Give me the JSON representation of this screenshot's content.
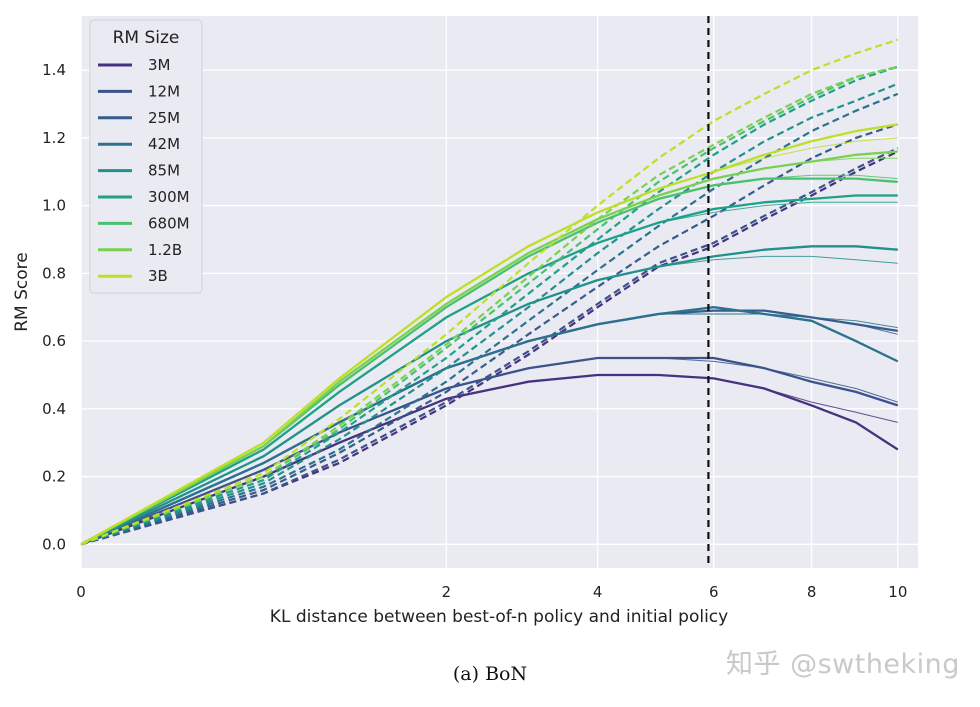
{
  "caption": "(a) BoN",
  "watermark": "知乎 @swtheking",
  "chart_data": {
    "type": "line",
    "xlabel": "KL distance between best-of-n policy and initial policy",
    "ylabel": "RM Score",
    "x_scale": "sqrt",
    "xlim": [
      0,
      10.5
    ],
    "ylim": [
      -0.07,
      1.56
    ],
    "x_ticks": [
      0,
      2,
      4,
      6,
      8,
      10
    ],
    "y_ticks": [
      0.0,
      0.2,
      0.4,
      0.6,
      0.8,
      1.0,
      1.2,
      1.4
    ],
    "vline_x": 5.9,
    "legend": {
      "title": "RM Size",
      "placement": "top-left"
    },
    "background_color": "#eaeaf2",
    "grid": true,
    "series": [
      {
        "name": "3M",
        "color": "#46327e",
        "x": [
          0,
          0.5,
          1,
          2,
          3,
          4,
          5,
          6,
          7,
          8,
          9,
          10
        ],
        "fit": [
          0,
          0.2,
          0.3,
          0.43,
          0.48,
          0.5,
          0.5,
          0.49,
          0.46,
          0.42,
          0.39,
          0.36
        ],
        "actual": [
          0,
          0.2,
          0.3,
          0.43,
          0.48,
          0.5,
          0.5,
          0.49,
          0.46,
          0.41,
          0.36,
          0.28
        ],
        "gold": [
          0,
          0.15,
          0.24,
          0.41,
          0.56,
          0.7,
          0.82,
          0.88,
          0.96,
          1.03,
          1.1,
          1.16
        ]
      },
      {
        "name": "12M",
        "color": "#3b528b",
        "x": [
          0,
          0.5,
          1,
          2,
          3,
          4,
          5,
          6,
          7,
          8,
          9,
          10
        ],
        "fit": [
          0,
          0.22,
          0.33,
          0.46,
          0.52,
          0.55,
          0.55,
          0.54,
          0.52,
          0.49,
          0.46,
          0.42
        ],
        "actual": [
          0,
          0.22,
          0.33,
          0.46,
          0.52,
          0.55,
          0.55,
          0.55,
          0.52,
          0.48,
          0.45,
          0.41
        ],
        "gold": [
          0,
          0.15,
          0.25,
          0.42,
          0.57,
          0.71,
          0.83,
          0.89,
          0.97,
          1.04,
          1.11,
          1.17
        ]
      },
      {
        "name": "25M",
        "color": "#365c8d",
        "x": [
          0,
          0.5,
          1,
          2,
          3,
          4,
          5,
          6,
          7,
          8,
          9,
          10
        ],
        "fit": [
          0,
          0.24,
          0.36,
          0.52,
          0.6,
          0.65,
          0.68,
          0.68,
          0.68,
          0.67,
          0.65,
          0.62
        ],
        "actual": [
          0,
          0.24,
          0.36,
          0.52,
          0.6,
          0.65,
          0.68,
          0.69,
          0.69,
          0.67,
          0.65,
          0.63
        ],
        "gold": [
          0,
          0.16,
          0.27,
          0.45,
          0.62,
          0.76,
          0.88,
          0.97,
          1.06,
          1.14,
          1.2,
          1.24
        ]
      },
      {
        "name": "42M",
        "color": "#2c728e",
        "x": [
          0,
          0.5,
          1,
          2,
          3,
          4,
          5,
          6,
          7,
          8,
          9,
          10
        ],
        "fit": [
          0,
          0.24,
          0.36,
          0.52,
          0.6,
          0.65,
          0.68,
          0.68,
          0.68,
          0.67,
          0.66,
          0.64
        ],
        "actual": [
          0,
          0.24,
          0.36,
          0.52,
          0.6,
          0.65,
          0.68,
          0.7,
          0.68,
          0.66,
          0.6,
          0.54
        ],
        "gold": [
          0,
          0.17,
          0.28,
          0.48,
          0.66,
          0.81,
          0.94,
          1.05,
          1.14,
          1.22,
          1.28,
          1.33
        ]
      },
      {
        "name": "85M",
        "color": "#21918c",
        "x": [
          0,
          0.5,
          1,
          2,
          3,
          4,
          5,
          6,
          7,
          8,
          9,
          10
        ],
        "fit": [
          0,
          0.26,
          0.41,
          0.6,
          0.71,
          0.78,
          0.82,
          0.84,
          0.85,
          0.85,
          0.84,
          0.83
        ],
        "actual": [
          0,
          0.26,
          0.41,
          0.6,
          0.71,
          0.78,
          0.82,
          0.85,
          0.87,
          0.88,
          0.88,
          0.87
        ],
        "gold": [
          0,
          0.18,
          0.31,
          0.52,
          0.7,
          0.86,
          0.99,
          1.1,
          1.19,
          1.26,
          1.31,
          1.36
        ]
      },
      {
        "name": "300M",
        "color": "#1fa187",
        "x": [
          0,
          0.5,
          1,
          2,
          3,
          4,
          5,
          6,
          7,
          8,
          9,
          10
        ],
        "fit": [
          0,
          0.28,
          0.45,
          0.67,
          0.8,
          0.89,
          0.95,
          0.98,
          1.0,
          1.01,
          1.01,
          1.01
        ],
        "actual": [
          0,
          0.28,
          0.45,
          0.67,
          0.8,
          0.89,
          0.95,
          0.99,
          1.01,
          1.02,
          1.03,
          1.03
        ],
        "gold": [
          0,
          0.19,
          0.33,
          0.55,
          0.74,
          0.9,
          1.04,
          1.15,
          1.24,
          1.31,
          1.37,
          1.41
        ]
      },
      {
        "name": "680M",
        "color": "#4ac16d",
        "x": [
          0,
          0.5,
          1,
          2,
          3,
          4,
          5,
          6,
          7,
          8,
          9,
          10
        ],
        "fit": [
          0,
          0.29,
          0.47,
          0.7,
          0.85,
          0.95,
          1.02,
          1.06,
          1.08,
          1.09,
          1.09,
          1.08
        ],
        "actual": [
          0,
          0.29,
          0.47,
          0.7,
          0.85,
          0.95,
          1.02,
          1.06,
          1.08,
          1.08,
          1.08,
          1.07
        ],
        "gold": [
          0,
          0.2,
          0.34,
          0.58,
          0.77,
          0.93,
          1.07,
          1.17,
          1.25,
          1.32,
          1.38,
          1.41
        ]
      },
      {
        "name": "1.2B",
        "color": "#7ad151",
        "x": [
          0,
          0.5,
          1,
          2,
          3,
          4,
          5,
          6,
          7,
          8,
          9,
          10
        ],
        "fit": [
          0,
          0.29,
          0.48,
          0.71,
          0.86,
          0.96,
          1.03,
          1.08,
          1.11,
          1.13,
          1.14,
          1.14
        ],
        "actual": [
          0,
          0.29,
          0.48,
          0.71,
          0.86,
          0.96,
          1.03,
          1.08,
          1.11,
          1.13,
          1.15,
          1.16
        ],
        "gold": [
          0,
          0.2,
          0.35,
          0.59,
          0.79,
          0.96,
          1.09,
          1.18,
          1.26,
          1.33,
          1.38,
          1.41
        ]
      },
      {
        "name": "3B",
        "color": "#bddf26",
        "x": [
          0,
          0.5,
          1,
          2,
          3,
          4,
          5,
          6,
          7,
          8,
          9,
          10
        ],
        "fit": [
          0,
          0.3,
          0.49,
          0.73,
          0.88,
          0.98,
          1.05,
          1.1,
          1.14,
          1.17,
          1.19,
          1.2
        ],
        "actual": [
          0,
          0.3,
          0.49,
          0.73,
          0.88,
          0.98,
          1.05,
          1.1,
          1.15,
          1.19,
          1.22,
          1.24
        ],
        "gold": [
          0,
          0.21,
          0.37,
          0.62,
          0.83,
          1.0,
          1.14,
          1.25,
          1.33,
          1.4,
          1.45,
          1.49
        ]
      }
    ]
  }
}
